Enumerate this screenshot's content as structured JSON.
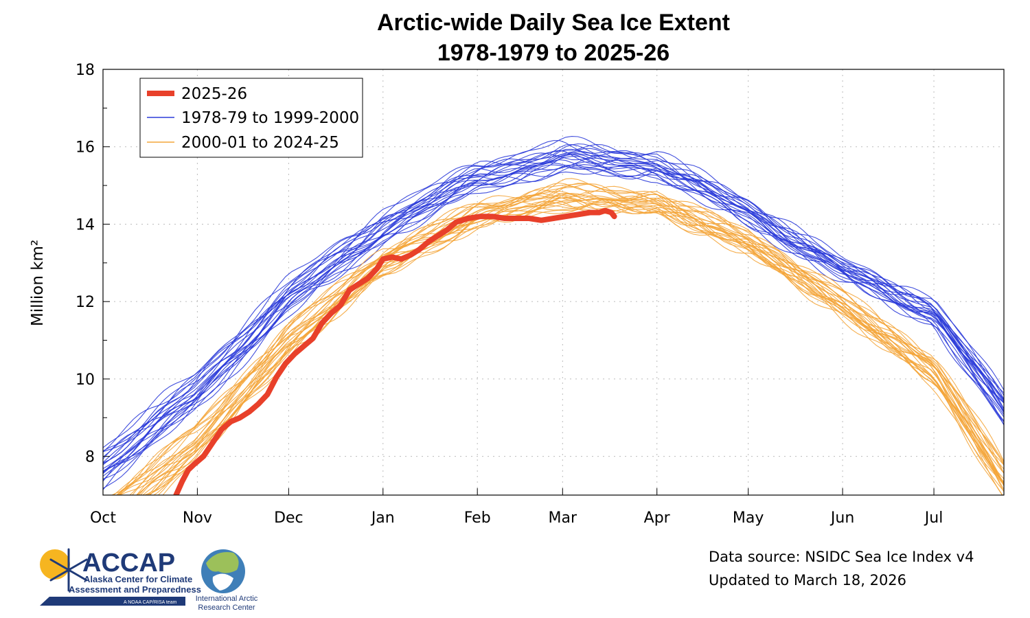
{
  "chart_data": {
    "type": "line",
    "title_line1": "Arctic-wide Daily Sea Ice Extent",
    "title_line2": "1978-1979 to 2025-26",
    "ylabel": "Million km²",
    "xlabel": "",
    "ylim": [
      7,
      18
    ],
    "y_ticks": [
      8,
      10,
      12,
      14,
      16,
      18
    ],
    "x_month_labels": [
      "Oct",
      "Nov",
      "Dec",
      "Jan",
      "Feb",
      "Mar",
      "Apr",
      "May",
      "Jun",
      "Jul"
    ],
    "x_month_start_day": [
      0,
      31,
      61,
      92,
      123,
      151,
      182,
      212,
      243,
      273
    ],
    "x_range_days": [
      0,
      296
    ],
    "grid": true,
    "legend_position": "top-left",
    "legend": [
      {
        "label": "2025-26",
        "color": "#e8402a",
        "style": "thick"
      },
      {
        "label": "1978-79 to 1999-2000",
        "color": "#2b3bd9",
        "style": "thin"
      },
      {
        "label": "2000-01 to 2024-25",
        "color": "#f4a53a",
        "style": "thin"
      }
    ],
    "series": [
      {
        "name": "2025-26",
        "color": "#e8402a",
        "days": [
          24,
          26,
          28,
          30,
          33,
          36,
          39,
          42,
          45,
          48,
          51,
          54,
          57,
          60,
          63,
          66,
          69,
          72,
          75,
          78,
          81,
          84,
          87,
          90,
          92,
          95,
          98,
          101,
          104,
          107,
          110,
          113,
          116,
          120,
          124,
          128,
          132,
          136,
          140,
          144,
          148,
          152,
          156,
          160,
          163,
          165,
          167,
          168
        ],
        "values": [
          7.0,
          7.35,
          7.65,
          7.8,
          8.0,
          8.35,
          8.7,
          8.9,
          9.0,
          9.15,
          9.35,
          9.6,
          10.05,
          10.4,
          10.65,
          10.85,
          11.05,
          11.45,
          11.7,
          11.9,
          12.3,
          12.45,
          12.6,
          12.85,
          13.1,
          13.15,
          13.1,
          13.2,
          13.35,
          13.55,
          13.7,
          13.85,
          14.05,
          14.15,
          14.2,
          14.2,
          14.15,
          14.15,
          14.15,
          14.1,
          14.15,
          14.2,
          14.25,
          14.3,
          14.3,
          14.35,
          14.3,
          14.2
        ]
      }
    ],
    "ensembles": [
      {
        "name": "1978-79 to 1999-2000",
        "color": "#2b3bd9",
        "count": 22,
        "days": [
          0,
          30,
          61,
          92,
          123,
          151,
          182,
          212,
          243,
          273,
          296
        ],
        "mean": [
          7.7,
          9.6,
          12.1,
          13.9,
          15.2,
          15.7,
          15.5,
          14.3,
          12.8,
          11.7,
          9.2
        ],
        "spread": [
          0.6,
          0.55,
          0.5,
          0.45,
          0.4,
          0.45,
          0.35,
          0.35,
          0.3,
          0.35,
          0.5
        ]
      },
      {
        "name": "2000-01 to 2024-25",
        "color": "#f4a53a",
        "count": 25,
        "days": [
          0,
          30,
          61,
          92,
          123,
          151,
          182,
          212,
          243,
          273,
          296
        ],
        "mean": [
          6.5,
          8.4,
          11.1,
          13.1,
          14.3,
          14.8,
          14.6,
          13.6,
          12.0,
          10.3,
          7.5
        ],
        "spread": [
          0.7,
          0.65,
          0.55,
          0.45,
          0.4,
          0.4,
          0.35,
          0.35,
          0.4,
          0.45,
          0.55
        ]
      }
    ]
  },
  "source": {
    "line1": "Data source: NSIDC Sea Ice Index v4",
    "line2": "Updated to March 18, 2026"
  },
  "logos": {
    "accap_name": "ACCAP",
    "accap_line1": "Alaska Center for Climate",
    "accap_line2": "Assessment and Preparedness",
    "accap_tag": "A NOAA CAP/RISA team",
    "iarc_line1": "International Arctic",
    "iarc_line2": "Research Center"
  },
  "colors": {
    "accent_red": "#e8402a",
    "blue": "#2b3bd9",
    "orange": "#f4a53a",
    "logo_navy": "#1f3a78"
  }
}
